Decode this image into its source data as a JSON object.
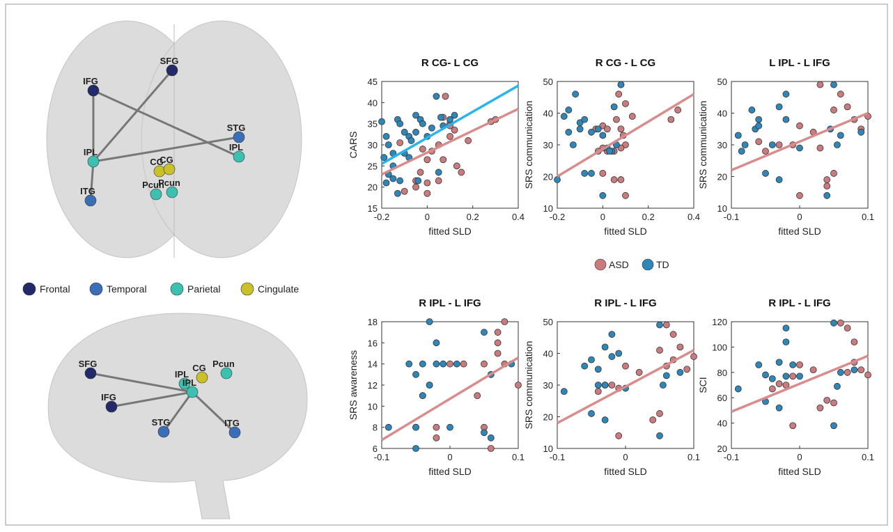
{
  "legend": {
    "items": [
      {
        "name": "ASD",
        "color": "#c97b7e"
      },
      {
        "name": "TD",
        "color": "#2f86b8"
      }
    ]
  },
  "brain_legend": [
    {
      "name": "Frontal",
      "color": "#222a6a"
    },
    {
      "name": "Temporal",
      "color": "#3a6fb8"
    },
    {
      "name": "Parietal",
      "color": "#3cc0b0"
    },
    {
      "name": "Cingulate",
      "color": "#c9c02a"
    }
  ],
  "brain_top": {
    "nodes": [
      {
        "label": "SFG",
        "color": "#222a6a"
      },
      {
        "label": "IFG",
        "color": "#222a6a"
      },
      {
        "label": "STG",
        "color": "#3a6fb8"
      },
      {
        "label": "IPL",
        "color": "#3cc0b0"
      },
      {
        "label": "IPL",
        "color": "#3cc0b0"
      },
      {
        "label": "CG",
        "color": "#c9c02a"
      },
      {
        "label": "CG",
        "color": "#c9c02a"
      },
      {
        "label": "Pcun",
        "color": "#3cc0b0"
      },
      {
        "label": "Pcun",
        "color": "#3cc0b0"
      },
      {
        "label": "ITG",
        "color": "#3a6fb8"
      }
    ]
  },
  "brain_side": {
    "nodes": [
      {
        "label": "SFG",
        "color": "#222a6a"
      },
      {
        "label": "IFG",
        "color": "#222a6a"
      },
      {
        "label": "IPL",
        "color": "#3cc0b0"
      },
      {
        "label": "IPL",
        "color": "#3cc0b0"
      },
      {
        "label": "CG",
        "color": "#c9c02a"
      },
      {
        "label": "Pcun",
        "color": "#3cc0b0"
      },
      {
        "label": "STG",
        "color": "#3a6fb8"
      },
      {
        "label": "ITG",
        "color": "#3a6fb8"
      }
    ]
  },
  "chart_data": [
    {
      "type": "scatter",
      "title": "R CG- L CG",
      "x_label": "fitted SLD",
      "y_label": "CARS",
      "xlim": [
        -0.2,
        0.4
      ],
      "ylim": [
        15,
        45
      ],
      "xticks": [
        -0.2,
        0,
        0.2,
        0.4
      ],
      "yticks": [
        15,
        20,
        25,
        30,
        35,
        40,
        45
      ],
      "series": [
        {
          "x": [
            0.08,
            0.07,
            0.1,
            0.12,
            0.1,
            0.05,
            0.02,
            -0.02,
            0,
            -0.03,
            -0.05,
            0,
            0,
            0.13,
            0.15,
            0.18,
            0.28,
            0.3,
            0.07,
            -0.1,
            -0.05,
            0.05,
            -0.12,
            0.1
          ],
          "values": [
            41.5,
            36.5,
            35,
            33.5,
            32,
            30,
            28.5,
            29,
            26.5,
            23.5,
            20,
            21,
            18.5,
            25,
            23.5,
            31,
            35.5,
            36,
            26.5,
            19,
            21.5,
            21.5,
            30.5,
            34.5
          ]
        },
        {
          "x": [
            -0.2,
            -0.18,
            -0.17,
            -0.15,
            -0.13,
            -0.12,
            -0.1,
            -0.08,
            -0.07,
            -0.05,
            -0.05,
            -0.03,
            -0.02,
            0,
            0.02,
            0.04,
            0.06,
            0.07,
            0.1,
            0.12,
            -0.15,
            -0.17,
            -0.18,
            -0.15,
            -0.13,
            -0.12,
            -0.1,
            -0.08,
            0.05,
            -0.04,
            -0.19
          ],
          "values": [
            35.5,
            32,
            30,
            28,
            36,
            35,
            33,
            32,
            31,
            33,
            37,
            36,
            35,
            32,
            34,
            41.5,
            36.5,
            34.5,
            36,
            37,
            25,
            23,
            21,
            22,
            18.5,
            21.5,
            28,
            27,
            23.5,
            21.5,
            27
          ]
        }
      ],
      "fits": [
        {
          "color": "#d98c8c",
          "x": [
            -0.2,
            0.4
          ],
          "values": [
            23,
            38.5
          ]
        },
        {
          "color": "#2ab4ee",
          "x": [
            -0.2,
            0.4
          ],
          "values": [
            25.5,
            44
          ]
        }
      ]
    },
    {
      "type": "scatter",
      "title": "R CG - L CG",
      "x_label": "fitted SLD",
      "y_label": "SRS communication",
      "xlim": [
        -0.2,
        0.4
      ],
      "ylim": [
        10,
        50
      ],
      "xticks": [
        -0.2,
        0,
        0.2,
        0.4
      ],
      "yticks": [
        10,
        20,
        30,
        40,
        50
      ],
      "series": [
        {
          "x": [
            0.08,
            0.07,
            0.1,
            0.13,
            0.06,
            0,
            -0.03,
            0.02,
            0.08,
            0.09,
            0.1,
            0,
            0.02,
            0.05,
            -0.02,
            0.08,
            0.3,
            0.33,
            0.08,
            0.05,
            0.1,
            0
          ],
          "values": [
            49,
            46,
            43,
            39,
            38,
            36,
            35,
            35,
            35,
            33,
            30,
            29,
            28,
            28,
            28,
            29,
            38,
            41,
            19,
            19,
            14,
            21
          ]
        },
        {
          "x": [
            -0.2,
            -0.17,
            -0.15,
            -0.12,
            -0.1,
            -0.08,
            -0.05,
            -0.02,
            0,
            0.02,
            0.04,
            0.06,
            0.08,
            0.05,
            -0.15,
            -0.13,
            -0.1,
            -0.08,
            0,
            -0.05,
            0.03
          ],
          "values": [
            19,
            39,
            41,
            46,
            37,
            38,
            34,
            35,
            33,
            29,
            28,
            30,
            49,
            42,
            34,
            30,
            35,
            21,
            14,
            21,
            28
          ]
        }
      ],
      "fits": [
        {
          "color": "#d98c8c",
          "x": [
            -0.2,
            0.4
          ],
          "values": [
            20,
            46
          ]
        }
      ]
    },
    {
      "type": "scatter",
      "title": "L IPL - L IFG",
      "x_label": "fitted SLD",
      "y_label": "SRS communication",
      "xlim": [
        -0.1,
        0.1
      ],
      "ylim": [
        10,
        50
      ],
      "xticks": [
        -0.1,
        0,
        0.1
      ],
      "yticks": [
        10,
        20,
        30,
        40,
        50
      ],
      "series": [
        {
          "x": [
            0.03,
            0.05,
            0.06,
            0.07,
            0.08,
            0.09,
            0.1,
            -0.05,
            -0.03,
            -0.01,
            0,
            0.02,
            0.03,
            0.04,
            0.05,
            0,
            -0.06,
            0.04
          ],
          "values": [
            49,
            41,
            46,
            42,
            38,
            35,
            39,
            28,
            30,
            30,
            36,
            34,
            29,
            19,
            21,
            14,
            31,
            17
          ]
        },
        {
          "x": [
            -0.09,
            -0.085,
            -0.08,
            -0.07,
            -0.065,
            -0.06,
            -0.06,
            -0.04,
            -0.03,
            -0.02,
            -0.02,
            0,
            0.04,
            0.05,
            0.055,
            0.06,
            0.09,
            -0.05,
            -0.03,
            0.045
          ],
          "values": [
            33,
            28,
            30,
            41,
            35,
            36,
            38,
            30,
            42,
            46,
            38,
            29,
            14,
            49,
            30,
            33,
            34,
            21,
            19,
            35
          ]
        }
      ],
      "fits": [
        {
          "color": "#d98c8c",
          "x": [
            -0.1,
            0.1
          ],
          "values": [
            22,
            40
          ]
        }
      ]
    },
    {
      "type": "scatter",
      "title": "R IPL - L IFG",
      "x_label": "fitted SLD",
      "y_label": "SRS awareness",
      "xlim": [
        -0.1,
        0.1
      ],
      "ylim": [
        6,
        18
      ],
      "xticks": [
        -0.1,
        0,
        0.1
      ],
      "yticks": [
        6,
        8,
        10,
        12,
        14,
        16,
        18
      ],
      "series": [
        {
          "x": [
            -0.05,
            -0.02,
            -0.02,
            0,
            0.02,
            0.04,
            0.05,
            0.05,
            0.06,
            0.07,
            0.07,
            0.08,
            0.08,
            0.1,
            -0.03,
            -0.04,
            0.07
          ],
          "values": [
            8,
            7,
            8,
            14,
            14,
            11,
            14,
            8,
            6,
            16,
            17,
            14,
            18,
            12,
            12,
            11,
            15
          ]
        },
        {
          "x": [
            -0.09,
            -0.06,
            -0.05,
            -0.05,
            -0.05,
            -0.04,
            -0.04,
            -0.03,
            -0.03,
            -0.02,
            -0.02,
            -0.01,
            0,
            0.01,
            0.05,
            0.06,
            0.06,
            0.09,
            0.05
          ],
          "values": [
            8,
            14,
            13,
            8,
            6,
            14,
            11,
            18,
            12,
            16,
            14,
            14,
            8,
            14,
            17,
            7,
            13,
            14,
            7.5
          ]
        }
      ],
      "fits": [
        {
          "color": "#d98c8c",
          "x": [
            -0.1,
            0.1
          ],
          "values": [
            6.8,
            14.6
          ]
        }
      ]
    },
    {
      "type": "scatter",
      "title": "R IPL - L IFG",
      "x_label": "fitted SLD",
      "y_label": "SRS communication",
      "xlim": [
        -0.1,
        0.1
      ],
      "ylim": [
        10,
        50
      ],
      "xticks": [
        -0.1,
        0,
        0.1
      ],
      "yticks": [
        10,
        20,
        30,
        40,
        50
      ],
      "series": [
        {
          "x": [
            0.06,
            0.07,
            0.05,
            0.08,
            0.07,
            0.09,
            0.1,
            -0.04,
            -0.03,
            -0.02,
            -0.01,
            0,
            0.02,
            0.04,
            0.05,
            -0.01,
            0.06
          ],
          "values": [
            49,
            46,
            41,
            42,
            38,
            35,
            39,
            28,
            30,
            30,
            29,
            36,
            34,
            19,
            21,
            14,
            36
          ]
        },
        {
          "x": [
            -0.09,
            -0.06,
            -0.05,
            -0.05,
            -0.04,
            -0.04,
            -0.03,
            -0.03,
            -0.02,
            -0.02,
            -0.01,
            0,
            0.05,
            0.055,
            0.05,
            0.06,
            0.08,
            -0.03
          ],
          "values": [
            28,
            36,
            38,
            21,
            30,
            35,
            42,
            19,
            46,
            39,
            40,
            29,
            49,
            30,
            14,
            33,
            34,
            30
          ]
        }
      ],
      "fits": [
        {
          "color": "#d98c8c",
          "x": [
            -0.1,
            0.1
          ],
          "values": [
            18,
            41
          ]
        }
      ]
    },
    {
      "type": "scatter",
      "title": "R IPL - L IFG",
      "x_label": "fitted SLD",
      "y_label": "SCI",
      "xlim": [
        -0.1,
        0.1
      ],
      "ylim": [
        20,
        120
      ],
      "xticks": [
        -0.1,
        0,
        0.1
      ],
      "yticks": [
        20,
        40,
        60,
        80,
        100,
        120
      ],
      "series": [
        {
          "x": [
            0.06,
            0.07,
            0.08,
            0.08,
            0.07,
            0.09,
            0.1,
            -0.04,
            -0.03,
            -0.02,
            -0.01,
            0,
            0.02,
            0.03,
            0.04,
            -0.01,
            0.05
          ],
          "values": [
            119,
            115,
            104,
            88,
            80,
            82,
            78,
            67,
            71,
            70,
            77,
            86,
            82,
            52,
            58,
            38,
            56
          ]
        },
        {
          "x": [
            -0.09,
            -0.06,
            -0.05,
            -0.05,
            -0.04,
            -0.03,
            -0.02,
            -0.03,
            -0.02,
            -0.02,
            -0.01,
            0,
            0.05,
            0.055,
            0.05,
            0.06,
            0.08
          ],
          "values": [
            67,
            86,
            78,
            57,
            75,
            88,
            104,
            52,
            115,
            77,
            86,
            77,
            119,
            69,
            38,
            80,
            82
          ]
        }
      ],
      "fits": [
        {
          "color": "#d98c8c",
          "x": [
            -0.1,
            0.1
          ],
          "values": [
            49,
            93
          ]
        }
      ]
    }
  ]
}
